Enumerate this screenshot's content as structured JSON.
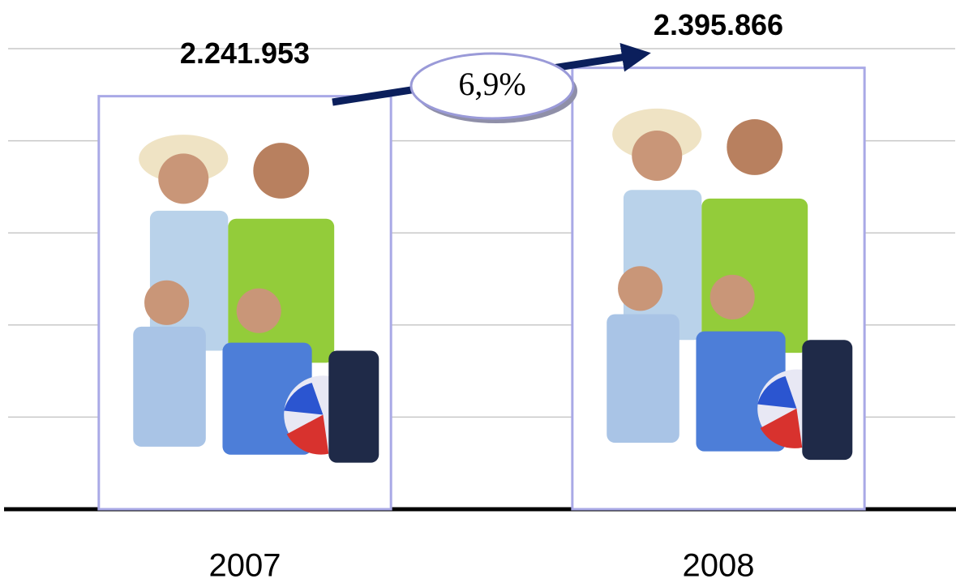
{
  "chart_data": {
    "type": "bar",
    "categories": [
      "2007",
      "2008"
    ],
    "values": [
      2241953,
      2395866
    ],
    "value_labels": [
      "2.241.953",
      "2.395.866"
    ],
    "annotation": "6,9%",
    "ylim": [
      0,
      2500000
    ],
    "yticks": [
      0,
      500000,
      1000000,
      1500000,
      2000000,
      2500000
    ],
    "grid": true
  }
}
